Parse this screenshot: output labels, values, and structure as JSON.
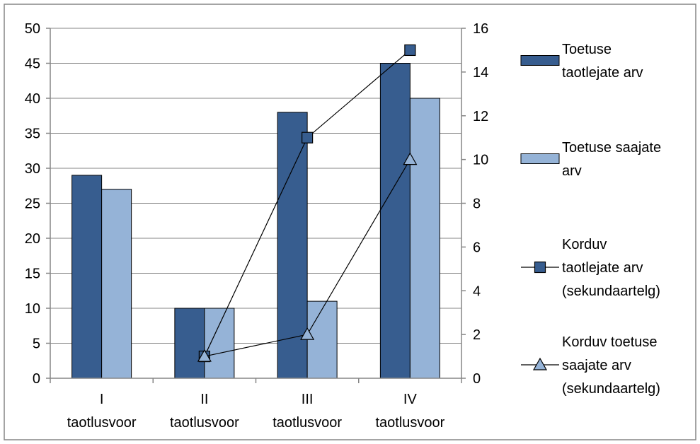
{
  "chart_data": {
    "type": "bar",
    "title": "",
    "xlabel": "",
    "ylabel": "",
    "y2label": "",
    "categories": [
      [
        "I",
        "taotlusvoor"
      ],
      [
        "II",
        "taotlusvoor"
      ],
      [
        "III",
        "taotlusvoor"
      ],
      [
        "IV",
        "taotlusvoor"
      ]
    ],
    "ylim": [
      0,
      50
    ],
    "yticks": [
      0,
      5,
      10,
      15,
      20,
      25,
      30,
      35,
      40,
      45,
      50
    ],
    "y2lim": [
      0,
      16
    ],
    "y2ticks": [
      0,
      2,
      4,
      6,
      8,
      10,
      12,
      14,
      16
    ],
    "grid": "horizontal",
    "legend_position": "right",
    "series": [
      {
        "name": "Toetuse taotlejate arv",
        "legend_lines": [
          "Toetuse",
          "taotlejate arv"
        ],
        "kind": "bar",
        "axis": "primary",
        "color": "#375d8f",
        "values": [
          29,
          10,
          38,
          45
        ]
      },
      {
        "name": "Toetuse saajate arv",
        "legend_lines": [
          "Toetuse saajate",
          "arv"
        ],
        "kind": "bar",
        "axis": "primary",
        "color": "#95b3d7",
        "values": [
          27,
          10,
          11,
          40
        ]
      },
      {
        "name": "Korduv taotlejate arv (sekundaartelg)",
        "legend_lines": [
          "Korduv",
          "taotlejate arv",
          "(sekundaartelg)"
        ],
        "kind": "line",
        "marker": "square",
        "axis": "secondary",
        "color": "#375d8f",
        "values": [
          null,
          1,
          11,
          15
        ]
      },
      {
        "name": "Korduv toetuse saajate arv (sekundaartelg)",
        "legend_lines": [
          "Korduv toetuse",
          "saajate arv",
          "(sekundaartelg)"
        ],
        "kind": "line",
        "marker": "triangle",
        "axis": "secondary",
        "color": "#95b3d7",
        "values": [
          null,
          1,
          2,
          10
        ]
      }
    ]
  }
}
